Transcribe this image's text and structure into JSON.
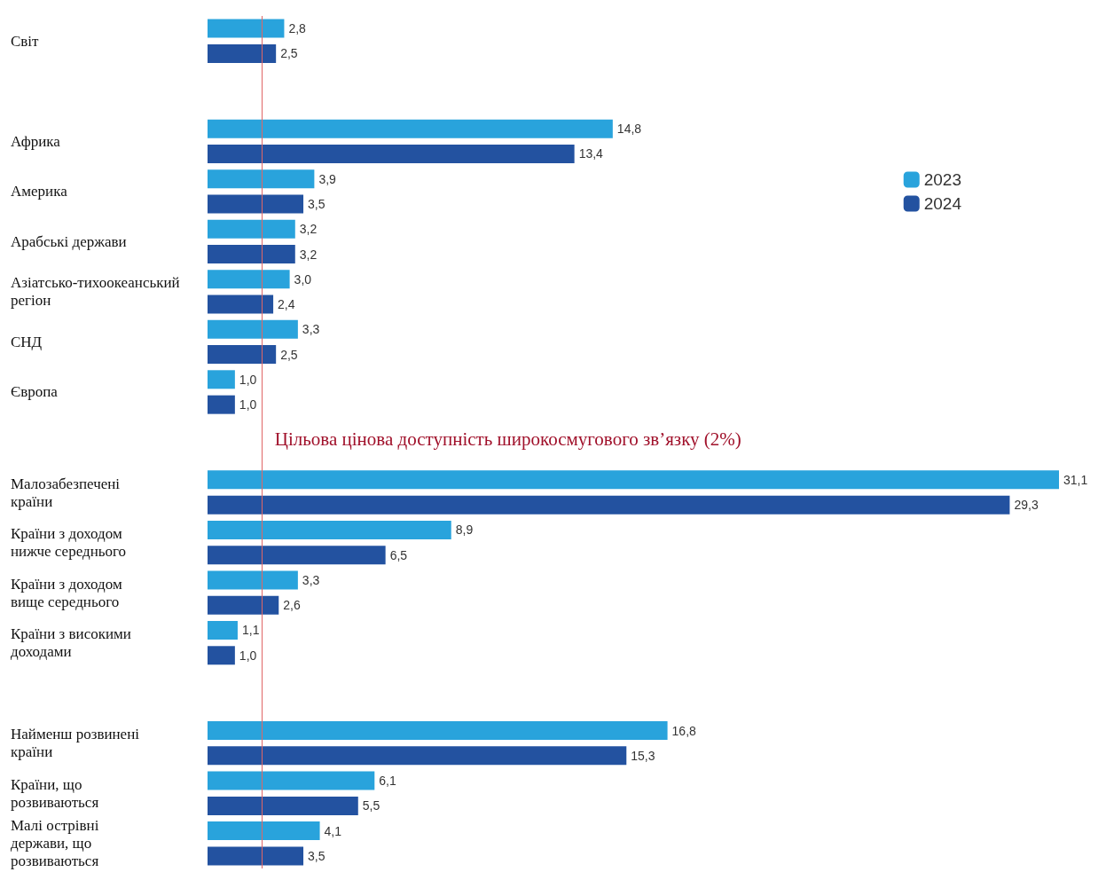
{
  "chart_data": {
    "type": "bar",
    "orientation": "horizontal",
    "categories": [
      "Світ",
      null,
      "Африка",
      "Америка",
      "Арабські держави",
      "Азіатсько-тихоокеанський регіон",
      "СНД",
      "Європа",
      null,
      "Малозабезпечені країни",
      "Країни з доходом нижче середнього",
      "Країни з доходом вище середнього",
      "Країни з високими доходами",
      null,
      "Найменш розвинені країни",
      "Країни, що розвиваються",
      "Малі острівні держави, що розвиваються"
    ],
    "series": [
      {
        "name": "2023",
        "color": "#29a3dc",
        "values": [
          2.8,
          null,
          14.8,
          3.9,
          3.2,
          3.0,
          3.3,
          1.0,
          null,
          31.1,
          8.9,
          3.3,
          1.1,
          null,
          16.8,
          6.1,
          4.1
        ],
        "value_labels": [
          "2,8",
          null,
          "14,8",
          "3,9",
          "3,2",
          "3,0",
          "3,3",
          "1,0",
          null,
          "31,1",
          "8,9",
          "3,3",
          "1,1",
          null,
          "16,8",
          "6,1",
          "4,1"
        ]
      },
      {
        "name": "2024",
        "color": "#2352a0",
        "values": [
          2.5,
          null,
          13.4,
          3.5,
          3.2,
          2.4,
          2.5,
          1.0,
          null,
          29.3,
          6.5,
          2.6,
          1.0,
          null,
          15.3,
          5.5,
          3.5
        ],
        "value_labels": [
          "2,5",
          null,
          "13,4",
          "3,5",
          "3,2",
          "2,4",
          "2,5",
          "1,0",
          null,
          "29,3",
          "6,5",
          "2,6",
          "1,0",
          null,
          "15,3",
          "5,5",
          "3,5"
        ]
      }
    ],
    "ref_lines": [
      {
        "axis": "x",
        "value": 2,
        "label": "Цільова цінова доступність широкосмугового зв’язку (2%)",
        "color": "#e06666"
      }
    ],
    "legend": "right"
  }
}
